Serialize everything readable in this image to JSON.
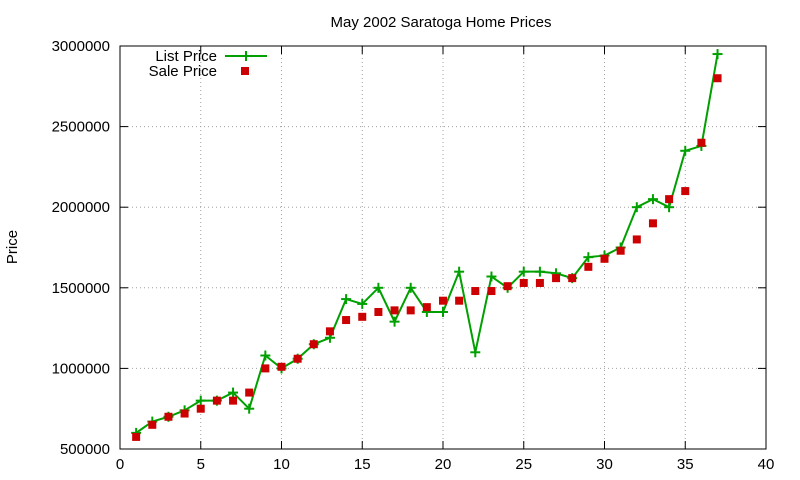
{
  "chart_data": {
    "type": "line",
    "title": "May 2002 Saratoga Home Prices",
    "xlabel": "",
    "ylabel": "Price",
    "xlim": [
      0,
      40
    ],
    "ylim": [
      500000,
      3000000
    ],
    "xticks": [
      0,
      5,
      10,
      15,
      20,
      25,
      30,
      35,
      40
    ],
    "yticks": [
      500000,
      1000000,
      1500000,
      2000000,
      2500000,
      3000000
    ],
    "xtick_labels": [
      "0",
      "5",
      "10",
      "15",
      "20",
      "25",
      "30",
      "35",
      "40"
    ],
    "ytick_labels": [
      "500000",
      "1000000",
      "1500000",
      "2000000",
      "2500000",
      "3000000"
    ],
    "grid": true,
    "legend_position": "top-left",
    "x": [
      1,
      2,
      3,
      4,
      5,
      6,
      7,
      8,
      9,
      10,
      11,
      12,
      13,
      14,
      15,
      16,
      17,
      18,
      19,
      20,
      21,
      22,
      23,
      24,
      25,
      26,
      27,
      28,
      29,
      30,
      31,
      32,
      33,
      34,
      35,
      36,
      37
    ],
    "series": [
      {
        "name": "List Price",
        "style": "line-plus",
        "color": "#00a000",
        "values": [
          600000,
          670000,
          700000,
          740000,
          800000,
          800000,
          850000,
          750000,
          1080000,
          1000000,
          1060000,
          1150000,
          1190000,
          1430000,
          1400000,
          1500000,
          1290000,
          1500000,
          1350000,
          1350000,
          1600000,
          1100000,
          1570000,
          1500000,
          1600000,
          1600000,
          1590000,
          1560000,
          1690000,
          1700000,
          1750000,
          2000000,
          2050000,
          2000000,
          2350000,
          2380000,
          2950000
        ]
      },
      {
        "name": "Sale Price",
        "style": "square",
        "color": "#cc0000",
        "values": [
          575000,
          650000,
          700000,
          720000,
          750000,
          800000,
          800000,
          850000,
          1000000,
          1010000,
          1060000,
          1150000,
          1230000,
          1300000,
          1320000,
          1350000,
          1360000,
          1360000,
          1380000,
          1420000,
          1420000,
          1480000,
          1480000,
          1510000,
          1530000,
          1530000,
          1560000,
          1560000,
          1630000,
          1680000,
          1730000,
          1800000,
          1900000,
          2050000,
          2100000,
          2400000,
          2800000
        ]
      }
    ]
  }
}
